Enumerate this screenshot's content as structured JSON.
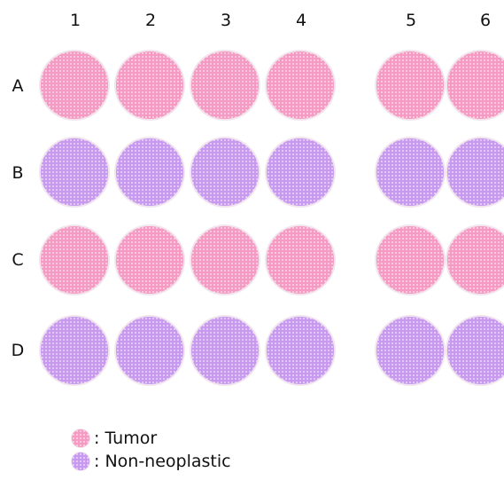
{
  "plate": {
    "columns": [
      "1",
      "2",
      "3",
      "4",
      "5",
      "6"
    ],
    "rows": [
      {
        "label": "A",
        "type": "tumor"
      },
      {
        "label": "B",
        "type": "non-neoplastic"
      },
      {
        "label": "C",
        "type": "tumor"
      },
      {
        "label": "D",
        "type": "non-neoplastic"
      }
    ]
  },
  "legend": {
    "tumor": {
      "label": ": Tumor",
      "color": "#f59ac2"
    },
    "non_neoplastic": {
      "label": ": Non-neoplastic",
      "color": "#c79af0"
    }
  }
}
